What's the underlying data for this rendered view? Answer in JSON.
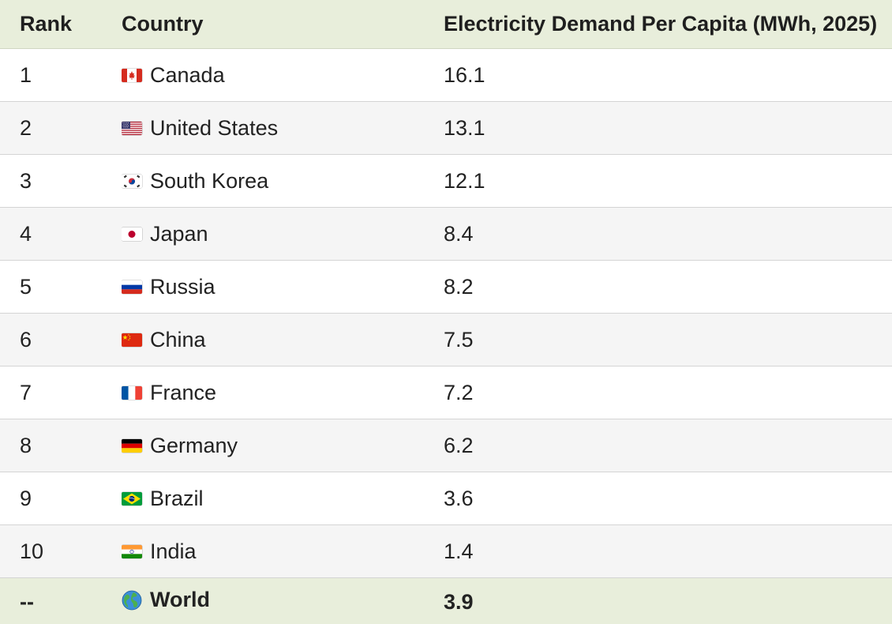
{
  "chart_data": {
    "type": "table",
    "columns": [
      "Rank",
      "Country",
      "Electricity Demand Per Capita (MWh, 2025)"
    ],
    "rows": [
      {
        "rank": "1",
        "country": "Canada",
        "flag": "canada-flag-icon",
        "value": "16.1"
      },
      {
        "rank": "2",
        "country": "United States",
        "flag": "united-states-flag-icon",
        "value": "13.1"
      },
      {
        "rank": "3",
        "country": "South Korea",
        "flag": "south-korea-flag-icon",
        "value": "12.1"
      },
      {
        "rank": "4",
        "country": "Japan",
        "flag": "japan-flag-icon",
        "value": "8.4"
      },
      {
        "rank": "5",
        "country": "Russia",
        "flag": "russia-flag-icon",
        "value": "8.2"
      },
      {
        "rank": "6",
        "country": "China",
        "flag": "china-flag-icon",
        "value": "7.5"
      },
      {
        "rank": "7",
        "country": "France",
        "flag": "france-flag-icon",
        "value": "7.2"
      },
      {
        "rank": "8",
        "country": "Germany",
        "flag": "germany-flag-icon",
        "value": "6.2"
      },
      {
        "rank": "9",
        "country": "Brazil",
        "flag": "brazil-flag-icon",
        "value": "3.6"
      },
      {
        "rank": "10",
        "country": "India",
        "flag": "india-flag-icon",
        "value": "1.4"
      }
    ],
    "total": {
      "rank": "--",
      "country": "World",
      "icon": "globe-icon",
      "value": "3.9"
    }
  },
  "colors": {
    "header_bg": "#e8eedb",
    "row_alt_bg": "#f5f5f5",
    "border": "#d4d4d4"
  }
}
